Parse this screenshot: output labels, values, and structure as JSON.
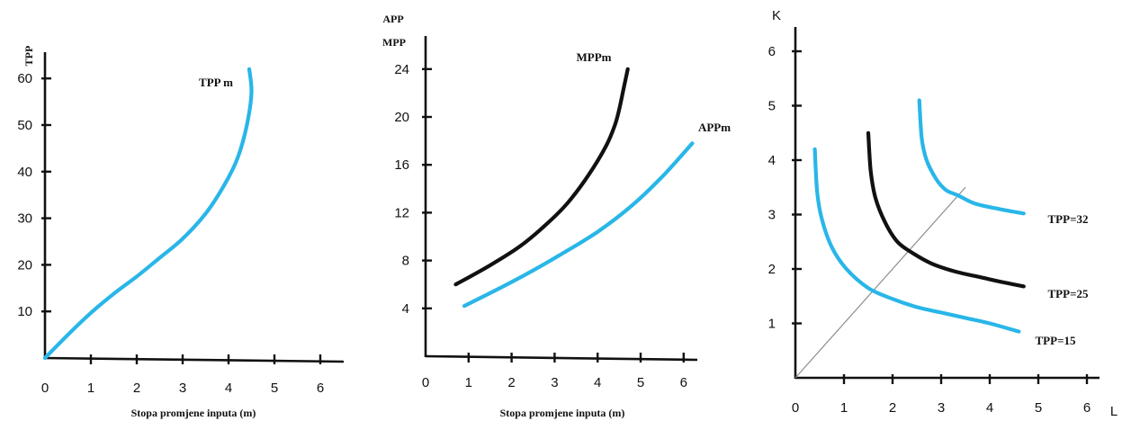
{
  "chart_data": [
    {
      "type": "line",
      "xlabel": "Stopa promjene inputa (m)",
      "ylabel": "TPP",
      "xlim": [
        0,
        6.5
      ],
      "ylim": [
        0,
        65
      ],
      "xticks": [
        "0",
        "1",
        "2",
        "3",
        "4",
        "5",
        "6"
      ],
      "yticks": [
        "10",
        "20",
        "30",
        "40",
        "50",
        "60"
      ],
      "series": [
        {
          "name": "TPP m",
          "color": "#29b6e8",
          "points": [
            [
              0,
              0
            ],
            [
              0.5,
              5
            ],
            [
              1,
              9.7
            ],
            [
              1.5,
              13.8
            ],
            [
              2,
              17.5
            ],
            [
              2.5,
              21.5
            ],
            [
              3,
              25.6
            ],
            [
              3.5,
              31
            ],
            [
              3.9,
              37
            ],
            [
              4.2,
              43
            ],
            [
              4.4,
              50
            ],
            [
              4.5,
              57
            ],
            [
              4.45,
              62
            ]
          ]
        }
      ]
    },
    {
      "type": "line",
      "xlabel": "Stopa promjene inputa (m)",
      "ylabel": "APP",
      "ylabel2": "MPP",
      "xlim": [
        0,
        6.5
      ],
      "ylim": [
        0,
        26
      ],
      "xticks": [
        "0",
        "1",
        "2",
        "3",
        "4",
        "5",
        "6"
      ],
      "yticks": [
        "4",
        "8",
        "12",
        "16",
        "20",
        "24"
      ],
      "series": [
        {
          "name": "MPPm",
          "color": "#111111",
          "points": [
            [
              0.7,
              6
            ],
            [
              1.5,
              7.6
            ],
            [
              2.2,
              9.2
            ],
            [
              2.8,
              11
            ],
            [
              3.3,
              12.8
            ],
            [
              3.8,
              15.2
            ],
            [
              4.2,
              17.6
            ],
            [
              4.4,
              19.3
            ],
            [
              4.5,
              20.6
            ],
            [
              4.6,
              22.3
            ],
            [
              4.7,
              24
            ]
          ]
        },
        {
          "name": "APPm",
          "color": "#29b6e8",
          "points": [
            [
              0.9,
              4.2
            ],
            [
              2,
              6.2
            ],
            [
              3,
              8.2
            ],
            [
              4,
              10.4
            ],
            [
              4.8,
              12.6
            ],
            [
              5.5,
              15
            ],
            [
              6.2,
              17.8
            ]
          ]
        }
      ]
    },
    {
      "type": "line",
      "xlabel": "L",
      "ylabel": "K",
      "xlim": [
        0,
        6.5
      ],
      "ylim": [
        0,
        6.7
      ],
      "xticks": [
        "0",
        "1",
        "2",
        "3",
        "4",
        "5",
        "6"
      ],
      "yticks": [
        "1",
        "2",
        "3",
        "4",
        "5",
        "6"
      ],
      "ray": {
        "from": [
          0,
          0
        ],
        "to": [
          3.5,
          3.5
        ],
        "color": "#8c8c8c"
      },
      "series": [
        {
          "name": "TPP=15",
          "color": "#29b6e8",
          "points": [
            [
              0.4,
              4.2
            ],
            [
              0.45,
              3.4
            ],
            [
              0.55,
              2.9
            ],
            [
              0.75,
              2.4
            ],
            [
              1.05,
              2
            ],
            [
              1.5,
              1.65
            ],
            [
              2,
              1.45
            ],
            [
              2.5,
              1.3
            ],
            [
              3,
              1.2
            ],
            [
              3.5,
              1.1
            ],
            [
              4,
              1
            ],
            [
              4.6,
              0.85
            ]
          ]
        },
        {
          "name": "TPP=25",
          "color": "#111111",
          "points": [
            [
              1.5,
              4.5
            ],
            [
              1.55,
              3.8
            ],
            [
              1.65,
              3.3
            ],
            [
              1.85,
              2.85
            ],
            [
              2.1,
              2.5
            ],
            [
              2.4,
              2.3
            ],
            [
              2.8,
              2.1
            ],
            [
              3.3,
              1.95
            ],
            [
              3.8,
              1.85
            ],
            [
              4.3,
              1.75
            ],
            [
              4.7,
              1.68
            ]
          ]
        },
        {
          "name": "TPP=32",
          "color": "#29b6e8",
          "points": [
            [
              2.55,
              5.1
            ],
            [
              2.6,
              4.4
            ],
            [
              2.7,
              4
            ],
            [
              2.9,
              3.65
            ],
            [
              3.1,
              3.45
            ],
            [
              3.35,
              3.35
            ],
            [
              3.7,
              3.2
            ],
            [
              4.2,
              3.1
            ],
            [
              4.7,
              3.02
            ]
          ]
        }
      ]
    }
  ]
}
